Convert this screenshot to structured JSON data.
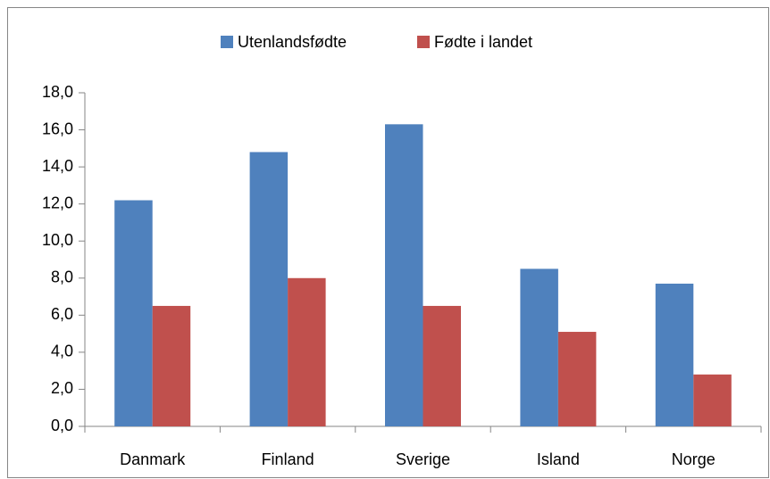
{
  "chart_data": {
    "type": "bar",
    "categories": [
      "Danmark",
      "Finland",
      "Sverige",
      "Island",
      "Norge"
    ],
    "series": [
      {
        "name": "Utenlandsfødte",
        "color": "#4f81bd",
        "values": [
          12.2,
          14.8,
          16.3,
          8.5,
          7.7
        ]
      },
      {
        "name": "Fødte i landet",
        "color": "#c0504d",
        "values": [
          6.5,
          8.0,
          6.5,
          5.1,
          2.8
        ]
      }
    ],
    "ylim": [
      0,
      18
    ],
    "yticks": [
      {
        "value": 0,
        "label": "0,0"
      },
      {
        "value": 2,
        "label": "2,0"
      },
      {
        "value": 4,
        "label": "4,0"
      },
      {
        "value": 6,
        "label": "6,0"
      },
      {
        "value": 8,
        "label": "8,0"
      },
      {
        "value": 10,
        "label": "10,0"
      },
      {
        "value": 12,
        "label": "12,0"
      },
      {
        "value": 14,
        "label": "14,0"
      },
      {
        "value": 16,
        "label": "16,0"
      },
      {
        "value": 18,
        "label": "18,0"
      }
    ],
    "grid": false,
    "legend": "top"
  }
}
